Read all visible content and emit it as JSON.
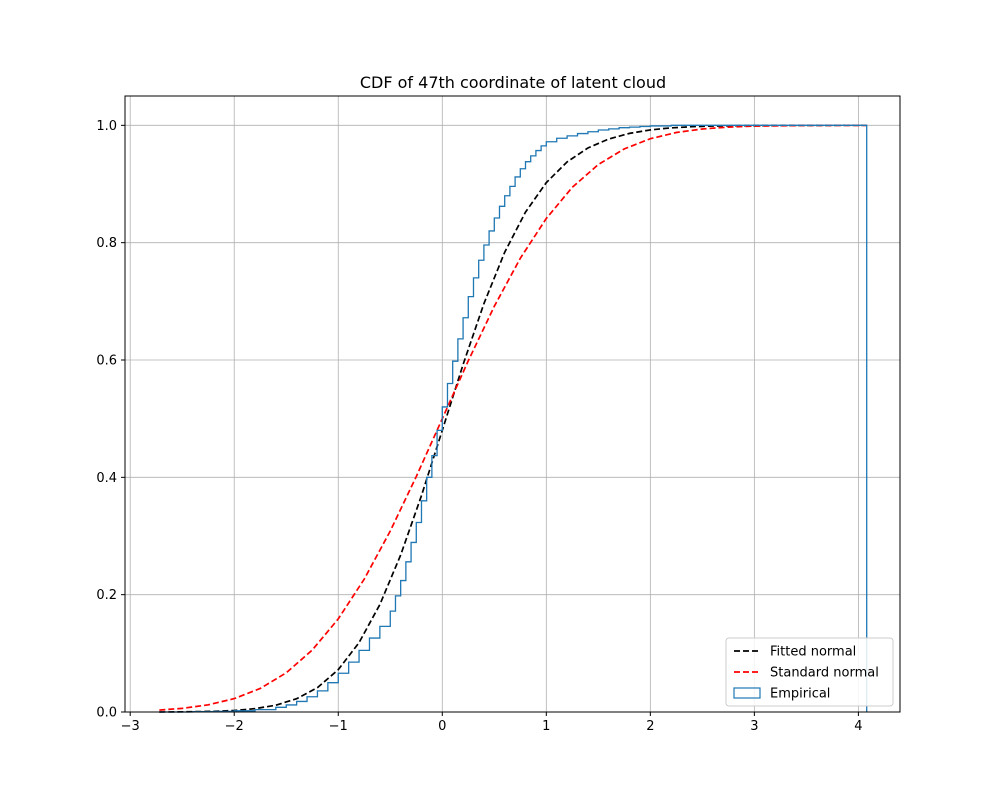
{
  "chart_data": {
    "type": "line",
    "title": "CDF of 47th coordinate of latent cloud",
    "xlabel": "",
    "ylabel": "",
    "xlim": [
      -3.05,
      4.4
    ],
    "ylim": [
      0.0,
      1.05
    ],
    "x_ticks": [
      -3,
      -2,
      -1,
      0,
      1,
      2,
      3,
      4
    ],
    "x_tick_labels": [
      "−3",
      "−2",
      "−1",
      "0",
      "1",
      "2",
      "3",
      "4"
    ],
    "y_ticks": [
      0.0,
      0.2,
      0.4,
      0.6,
      0.8,
      1.0
    ],
    "y_tick_labels": [
      "0.0",
      "0.2",
      "0.4",
      "0.6",
      "0.8",
      "1.0"
    ],
    "grid": true,
    "legend_position": "lower-right",
    "series": [
      {
        "name": "Fitted normal",
        "style": "dashed",
        "color": "#000000",
        "x": [
          -2.72,
          -2.4,
          -2.2,
          -2.0,
          -1.8,
          -1.6,
          -1.4,
          -1.2,
          -1.0,
          -0.8,
          -0.6,
          -0.4,
          -0.2,
          0.0,
          0.2,
          0.4,
          0.6,
          0.8,
          1.0,
          1.2,
          1.4,
          1.6,
          1.8,
          2.0,
          2.2,
          2.4,
          2.6,
          2.8,
          3.0,
          3.4,
          3.8,
          4.08
        ],
        "y": [
          0.0,
          0.0005,
          0.0011,
          0.0026,
          0.0057,
          0.0116,
          0.0226,
          0.0415,
          0.0721,
          0.1183,
          0.1832,
          0.2676,
          0.3689,
          0.4801,
          0.5923,
          0.696,
          0.7837,
          0.8521,
          0.9024,
          0.9377,
          0.9614,
          0.9767,
          0.9863,
          0.9922,
          0.9957,
          0.9977,
          0.9988,
          0.9994,
          0.9997,
          0.9999,
          1.0,
          1.0
        ]
      },
      {
        "name": "Standard normal",
        "style": "dashed",
        "color": "#ff0000",
        "x": [
          -2.72,
          -2.5,
          -2.25,
          -2.0,
          -1.75,
          -1.5,
          -1.25,
          -1.0,
          -0.75,
          -0.5,
          -0.25,
          0.0,
          0.25,
          0.5,
          0.75,
          1.0,
          1.25,
          1.5,
          1.75,
          2.0,
          2.25,
          2.5,
          2.75,
          3.0,
          3.5,
          4.08
        ],
        "y": [
          0.0033,
          0.0062,
          0.0122,
          0.0228,
          0.0401,
          0.0668,
          0.1056,
          0.1587,
          0.2266,
          0.3085,
          0.4013,
          0.5,
          0.5987,
          0.6915,
          0.7734,
          0.8413,
          0.8944,
          0.9332,
          0.9599,
          0.9772,
          0.9878,
          0.9938,
          0.997,
          0.9987,
          0.9998,
          1.0
        ]
      },
      {
        "name": "Empirical",
        "style": "step",
        "color": "#1f77b4",
        "x": [
          -2.72,
          -2.4,
          -2.2,
          -2.0,
          -1.8,
          -1.6,
          -1.5,
          -1.4,
          -1.3,
          -1.2,
          -1.1,
          -1.0,
          -0.9,
          -0.8,
          -0.7,
          -0.6,
          -0.5,
          -0.45,
          -0.4,
          -0.35,
          -0.3,
          -0.25,
          -0.2,
          -0.15,
          -0.1,
          -0.05,
          0.0,
          0.05,
          0.1,
          0.15,
          0.2,
          0.25,
          0.3,
          0.35,
          0.4,
          0.45,
          0.5,
          0.55,
          0.6,
          0.65,
          0.7,
          0.75,
          0.8,
          0.85,
          0.9,
          0.95,
          1.0,
          1.1,
          1.2,
          1.3,
          1.4,
          1.5,
          1.6,
          1.7,
          1.8,
          1.9,
          2.0,
          2.2,
          2.5,
          3.0,
          3.5,
          4.08
        ],
        "y": [
          0.0,
          0.0005,
          0.001,
          0.002,
          0.004,
          0.008,
          0.012,
          0.018,
          0.026,
          0.036,
          0.05,
          0.066,
          0.085,
          0.105,
          0.126,
          0.146,
          0.172,
          0.198,
          0.224,
          0.256,
          0.289,
          0.323,
          0.36,
          0.4,
          0.437,
          0.48,
          0.52,
          0.56,
          0.598,
          0.636,
          0.672,
          0.708,
          0.74,
          0.77,
          0.796,
          0.82,
          0.842,
          0.862,
          0.88,
          0.896,
          0.912,
          0.926,
          0.938,
          0.948,
          0.957,
          0.965,
          0.972,
          0.978,
          0.982,
          0.986,
          0.989,
          0.992,
          0.994,
          0.996,
          0.997,
          0.998,
          0.999,
          1.0,
          1.0,
          1.0,
          1.0,
          1.0
        ]
      }
    ]
  }
}
